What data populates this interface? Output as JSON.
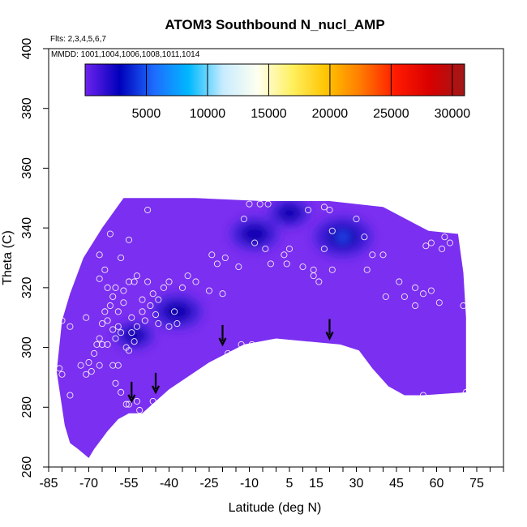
{
  "chart_data": {
    "type": "heatmap",
    "title": "ATOM3 Southbound N_nucl_AMP",
    "notes": {
      "flights": "Flts: 2,3,4,5,6,7",
      "dates": "MMDD: 1001,1004,1006,1008,1011,1014"
    },
    "xlabel": "Latitude (deg N)",
    "ylabel": "Theta (C)",
    "xlim": [
      -85,
      85
    ],
    "ylim": [
      260,
      400
    ],
    "x_tick_labels": [
      "-85",
      "-70",
      "-55",
      "-40",
      "-25",
      "-10",
      "5",
      "15",
      "30",
      "45",
      "60",
      "75"
    ],
    "y_tick_labels": [
      "260",
      "280",
      "300",
      "320",
      "340",
      "360",
      "380",
      "400"
    ],
    "colorbar": {
      "range": [
        0,
        31000
      ],
      "tick_values": [
        5000,
        10000,
        15000,
        20000,
        25000,
        30000
      ],
      "tick_labels": [
        "5000",
        "10000",
        "15000",
        "20000",
        "25000",
        "30000"
      ],
      "colors": [
        "#6f22ee",
        "#0000bb",
        "#1e6cff",
        "#00b8ff",
        "#c8ecff",
        "#fffff0",
        "#fff060",
        "#ffc400",
        "#ff7a00",
        "#ff1a00",
        "#d80000",
        "#a01818"
      ]
    },
    "background_value": 1200,
    "field_colors": {
      "background": "#7b2ff0",
      "moderate": "#3d1ed8",
      "high": "#0a04b0",
      "peak": "#2850ff"
    },
    "hotspots": [
      {
        "lat": -8,
        "theta": 338,
        "value": 5200
      },
      {
        "lat": 25,
        "theta": 337,
        "value": 7200
      },
      {
        "lat": -37,
        "theta": 312,
        "value": 5600
      },
      {
        "lat": -53,
        "theta": 304,
        "value": 3500
      },
      {
        "lat": 5,
        "theta": 345,
        "value": 3800
      }
    ],
    "tropopause_arrows": [
      {
        "lat": -54,
        "theta": 282
      },
      {
        "lat": -45,
        "theta": 285
      },
      {
        "lat": -20,
        "theta": 301
      },
      {
        "lat": 20,
        "theta": 303
      }
    ],
    "coverage_outline": [
      [
        -80,
        309
      ],
      [
        -77,
        318
      ],
      [
        -72,
        330
      ],
      [
        -65,
        340
      ],
      [
        -57,
        350
      ],
      [
        -30,
        350
      ],
      [
        -5,
        349
      ],
      [
        20,
        349
      ],
      [
        40,
        347
      ],
      [
        57,
        339
      ],
      [
        68,
        338
      ],
      [
        70,
        325
      ],
      [
        71,
        310
      ],
      [
        71,
        285
      ],
      [
        55,
        284
      ],
      [
        48,
        284
      ],
      [
        42,
        287
      ],
      [
        36,
        293
      ],
      [
        31,
        299
      ],
      [
        24,
        301
      ],
      [
        12,
        302
      ],
      [
        0,
        303
      ],
      [
        -12,
        301
      ],
      [
        -25,
        295
      ],
      [
        -40,
        286
      ],
      [
        -50,
        278
      ],
      [
        -55,
        278
      ],
      [
        -59,
        276
      ],
      [
        -63,
        272
      ],
      [
        -68,
        266
      ],
      [
        -70,
        263
      ],
      [
        -74,
        266
      ],
      [
        -77,
        268
      ],
      [
        -79,
        274
      ],
      [
        -80,
        280
      ],
      [
        -82,
        292
      ]
    ],
    "samples": [
      [
        -80,
        309
      ],
      [
        -81,
        293
      ],
      [
        -80,
        291
      ],
      [
        -77,
        284
      ],
      [
        -73,
        294
      ],
      [
        -71,
        291
      ],
      [
        -69,
        292
      ],
      [
        -70,
        295
      ],
      [
        -68,
        298
      ],
      [
        -66,
        294
      ],
      [
        -67,
        301
      ],
      [
        -66,
        303
      ],
      [
        -65,
        301
      ],
      [
        -63,
        301
      ],
      [
        -61,
        294
      ],
      [
        -59,
        294
      ],
      [
        -58,
        285
      ],
      [
        -60,
        288
      ],
      [
        -56,
        281
      ],
      [
        -55,
        281
      ],
      [
        -52,
        282
      ],
      [
        -51,
        279
      ],
      [
        -46,
        282
      ],
      [
        -65,
        308
      ],
      [
        -63,
        309
      ],
      [
        -61,
        306
      ],
      [
        -60,
        303
      ],
      [
        -59,
        307
      ],
      [
        -58,
        305
      ],
      [
        -56,
        300
      ],
      [
        -55,
        299
      ],
      [
        -54,
        310
      ],
      [
        -52,
        307
      ],
      [
        -50,
        312
      ],
      [
        -49,
        309
      ],
      [
        -47,
        314
      ],
      [
        -45,
        311
      ],
      [
        -44,
        308
      ],
      [
        -40,
        307
      ],
      [
        -37,
        308
      ],
      [
        -64,
        312
      ],
      [
        -62,
        314
      ],
      [
        -61,
        317
      ],
      [
        -60,
        320
      ],
      [
        -57,
        319
      ],
      [
        -55,
        322
      ],
      [
        -53,
        322
      ],
      [
        -52,
        324
      ],
      [
        -50,
        316
      ],
      [
        -48,
        322
      ],
      [
        -46,
        318
      ],
      [
        -44,
        316
      ],
      [
        -42,
        320
      ],
      [
        -40,
        322
      ],
      [
        -38,
        312
      ],
      [
        -35,
        320
      ],
      [
        -33,
        324
      ],
      [
        -30,
        322
      ],
      [
        -66,
        323
      ],
      [
        -64,
        326
      ],
      [
        -66,
        331
      ],
      [
        -62,
        338
      ],
      [
        -55,
        336
      ],
      [
        -48,
        346
      ],
      [
        -24,
        331
      ],
      [
        -22,
        328
      ],
      [
        -25,
        319
      ],
      [
        -20,
        318
      ],
      [
        -19,
        330
      ],
      [
        -14,
        327
      ],
      [
        -12,
        343
      ],
      [
        -10,
        348
      ],
      [
        -6,
        348
      ],
      [
        -3,
        348
      ],
      [
        -8,
        335
      ],
      [
        -4,
        333
      ],
      [
        -2,
        328
      ],
      [
        3,
        331
      ],
      [
        5,
        333
      ],
      [
        4,
        328
      ],
      [
        10,
        327
      ],
      [
        12,
        346
      ],
      [
        18,
        347
      ],
      [
        20,
        346
      ],
      [
        21,
        339
      ],
      [
        18,
        333
      ],
      [
        16,
        322
      ],
      [
        14,
        326
      ],
      [
        14,
        324
      ],
      [
        21,
        326
      ],
      [
        30,
        343
      ],
      [
        33,
        337
      ],
      [
        36,
        331
      ],
      [
        34,
        326
      ],
      [
        40,
        331
      ],
      [
        41,
        317
      ],
      [
        48,
        317
      ],
      [
        52,
        320
      ],
      [
        56,
        334
      ],
      [
        58,
        335
      ],
      [
        63,
        337
      ],
      [
        65,
        335
      ],
      [
        62,
        333
      ],
      [
        55,
        318
      ],
      [
        52,
        314
      ],
      [
        46,
        322
      ],
      [
        58,
        319
      ],
      [
        61,
        315
      ],
      [
        70,
        314
      ],
      [
        -15,
        296
      ],
      [
        -18,
        298
      ],
      [
        -13,
        301
      ],
      [
        -9,
        301
      ],
      [
        -5,
        301
      ],
      [
        -3,
        301
      ],
      [
        -1,
        301
      ],
      [
        5,
        301
      ],
      [
        8,
        301
      ],
      [
        11,
        300
      ],
      [
        14,
        299
      ],
      [
        19,
        298
      ],
      [
        25,
        297
      ],
      [
        33,
        292
      ],
      [
        34,
        292
      ],
      [
        38,
        287
      ],
      [
        41,
        286
      ],
      [
        45,
        283
      ],
      [
        55,
        284
      ],
      [
        71,
        285
      ],
      [
        -71,
        310
      ],
      [
        -77,
        307
      ],
      [
        -63,
        320
      ],
      [
        -58,
        330
      ],
      [
        -59,
        312
      ],
      [
        -57,
        315
      ],
      [
        -54,
        305
      ],
      [
        -53,
        302
      ]
    ]
  }
}
